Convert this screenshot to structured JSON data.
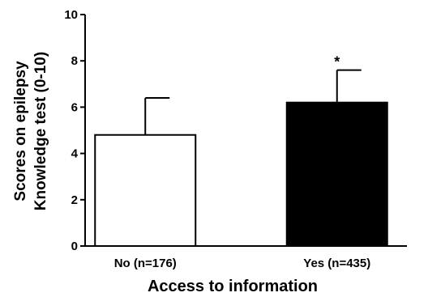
{
  "chart_data": {
    "type": "bar",
    "categories": [
      "No (n=176)",
      "Yes (n=435)"
    ],
    "values": [
      4.8,
      6.2
    ],
    "error_upper": [
      6.4,
      7.6
    ],
    "bar_colors": [
      "#ffffff",
      "#000000"
    ],
    "annotations": [
      "",
      "*"
    ],
    "xlabel": "Access to information",
    "ylabel_lines": [
      "Scores on epilepsy",
      "Knowledge test  (0-10)"
    ],
    "ylim": [
      0,
      10
    ],
    "yticks": [
      0,
      2,
      4,
      6,
      8,
      10
    ],
    "grid": false,
    "legend": "none"
  }
}
